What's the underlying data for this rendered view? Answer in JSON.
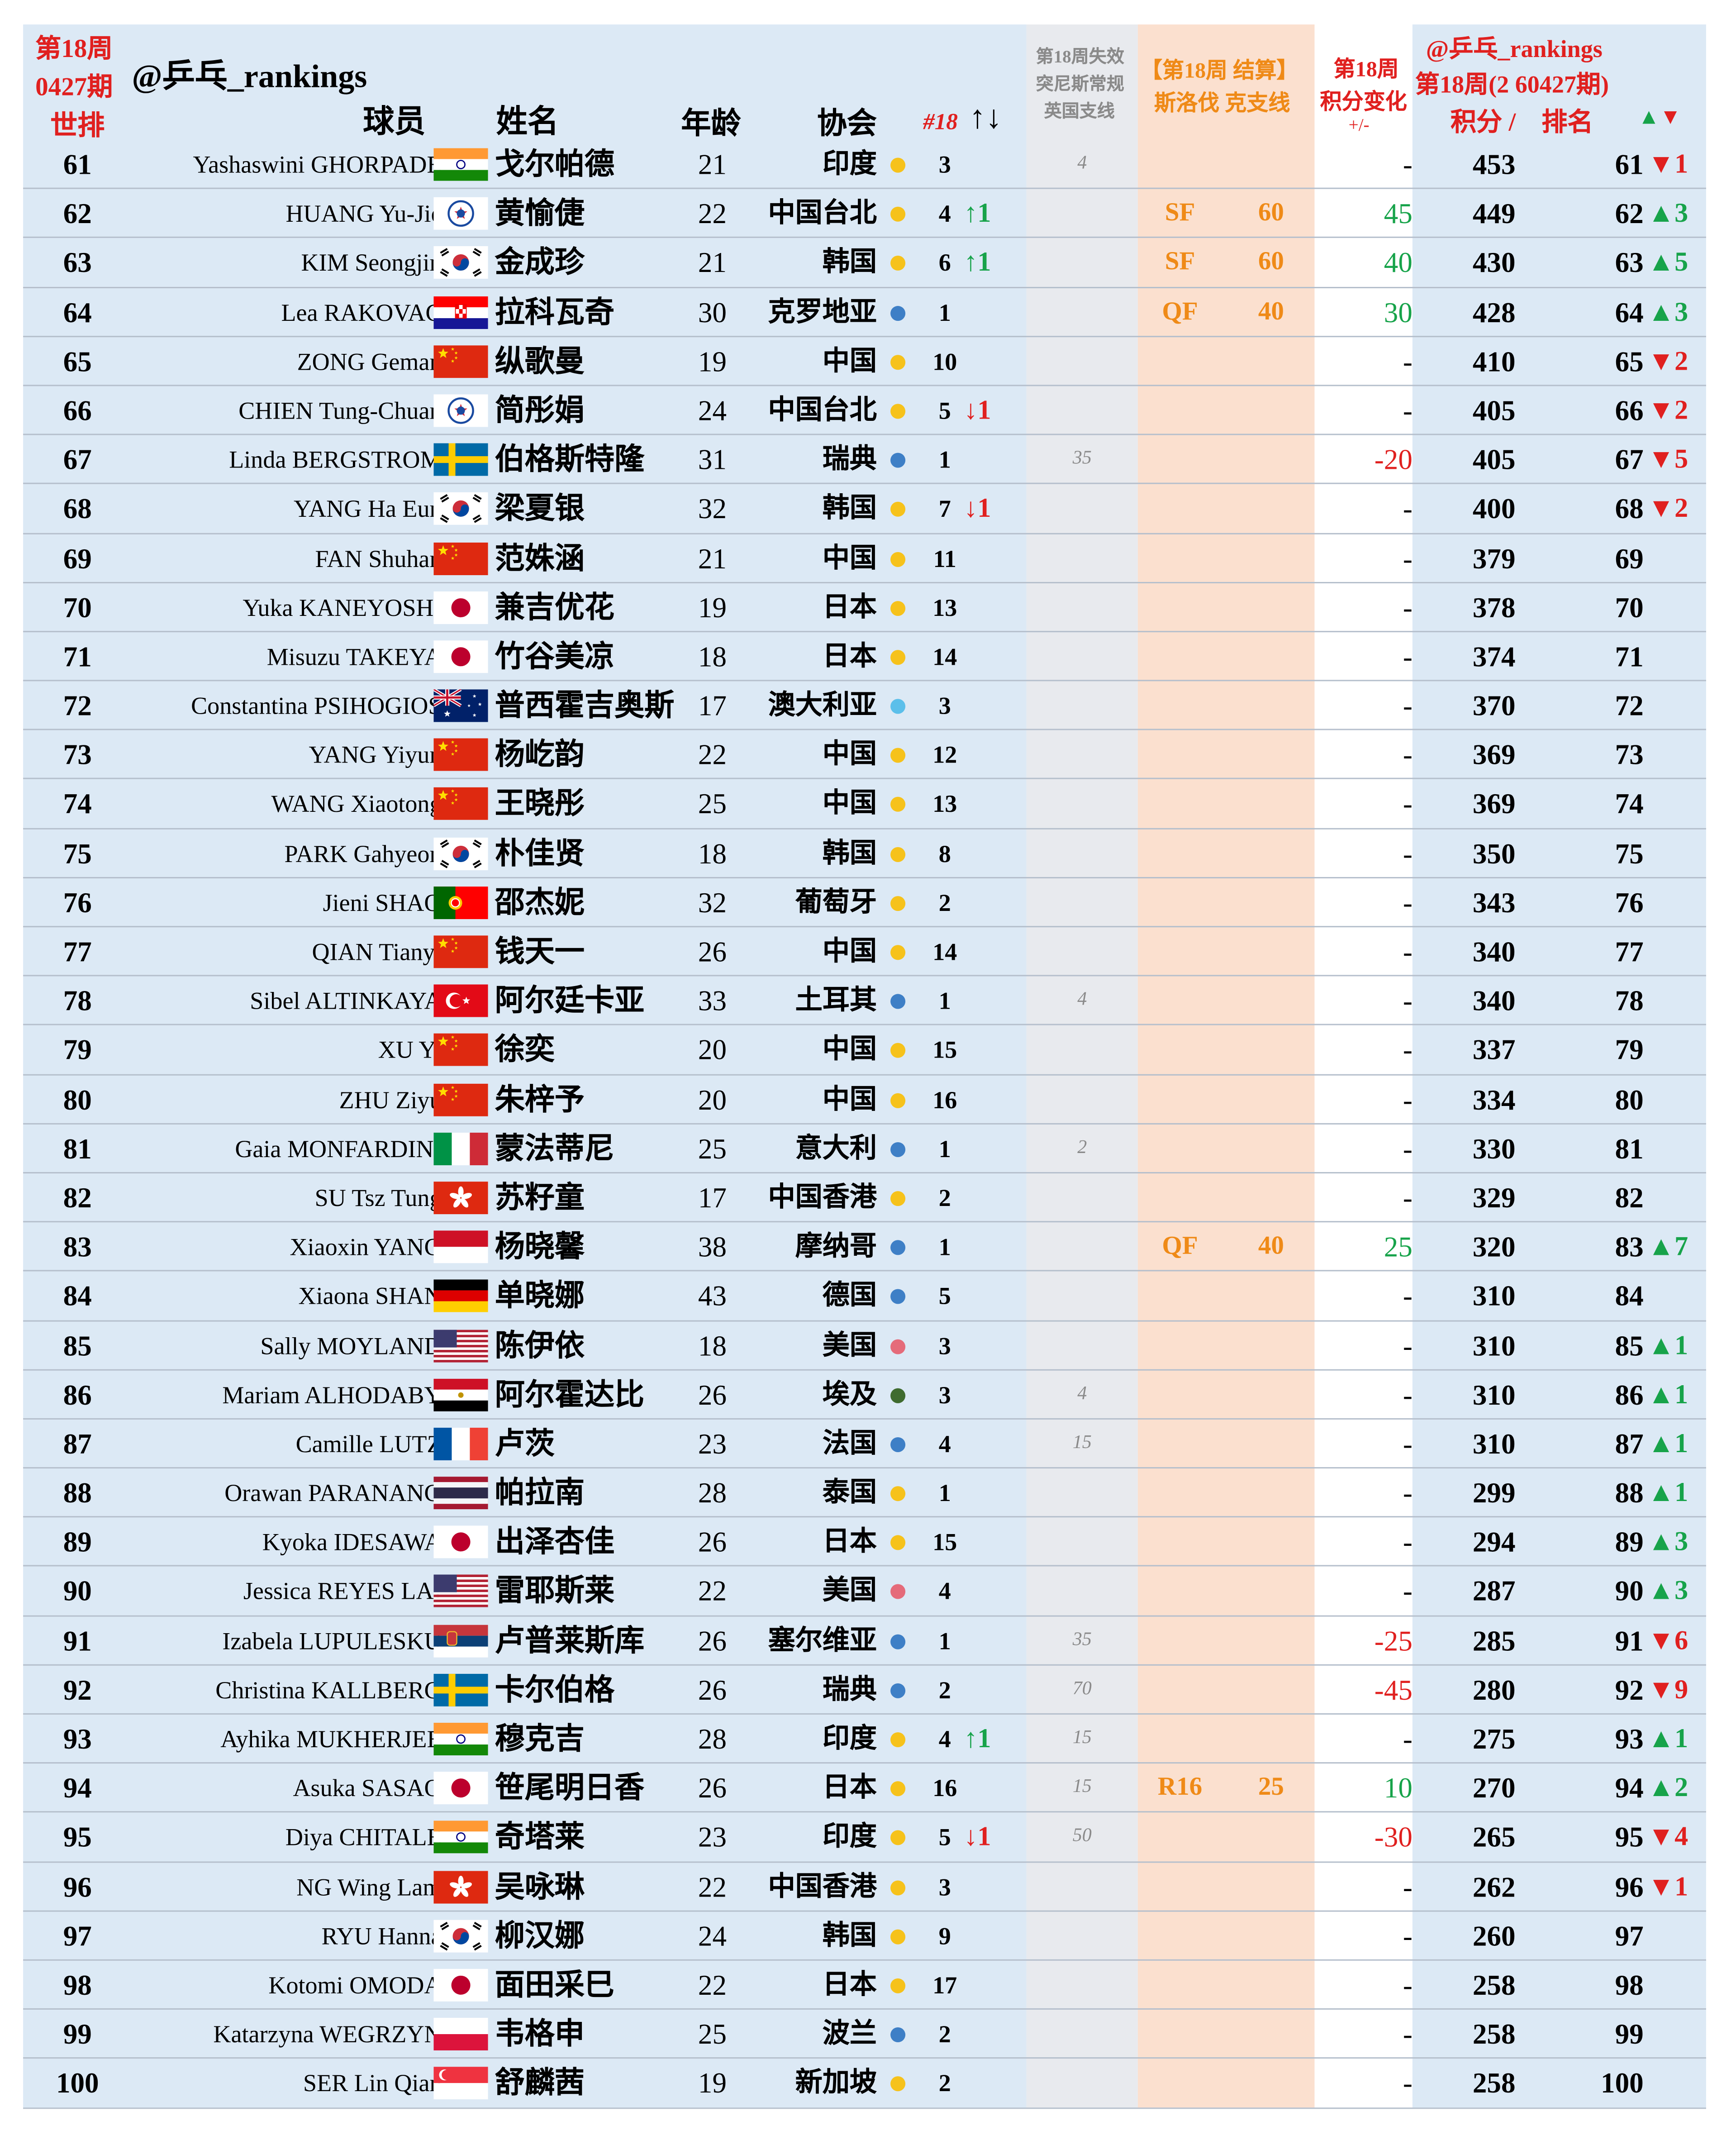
{
  "header": {
    "rank_title_1": "第18周",
    "rank_title_2": "0427期",
    "rank_title_3": "世排",
    "watermark": "@乒乓_rankings",
    "col_player": "球员",
    "col_name": "姓名",
    "col_age": "年龄",
    "col_assoc": "协会",
    "col_week": "#18",
    "col_week_arrows": "↑↓",
    "col_expire_1": "第18周失效",
    "col_expire_2": "突尼斯常规",
    "col_expire_3": "英国支线",
    "col_slov_1": "【第18周 结算】",
    "col_slov_2": "斯洛伐 克支线",
    "col_change_1": "第18周",
    "col_change_2": "积分变化",
    "col_change_3": "+/-",
    "col_new_1": "@乒乓_rankings",
    "col_new_2": "第18周(2 60427期)",
    "col_points": "积分 /",
    "col_newrank": "排名",
    "col_move": "▲▼"
  },
  "colors": {
    "dot_yellow": "#f6c21b",
    "dot_blue": "#3e7fc6",
    "dot_lightblue": "#5bbfea",
    "dot_pink": "#e56b7a",
    "dot_green": "#3f6b2f"
  },
  "rows": [
    {
      "rank": "61",
      "en": "Yashaswini GHORPADE",
      "flag": "IND",
      "cn": "戈尔帕德",
      "age": "21",
      "assoc": "印度",
      "dot": "yellow",
      "wk": "3",
      "mv": "",
      "mvdir": "",
      "exp": "4",
      "rd": "",
      "rp": "",
      "chg": "-",
      "chgdir": "",
      "pts": "453",
      "nr": "61",
      "md": "▼1",
      "mddir": "down"
    },
    {
      "rank": "62",
      "en": "HUANG Yu-Jie",
      "flag": "TPE",
      "cn": "黄愉倢",
      "age": "22",
      "assoc": "中国台北",
      "dot": "yellow",
      "wk": "4",
      "mv": "↑1",
      "mvdir": "up",
      "exp": "",
      "rd": "SF",
      "rp": "60",
      "chg": "45",
      "chgdir": "up",
      "pts": "449",
      "nr": "62",
      "md": "▲3",
      "mddir": "up"
    },
    {
      "rank": "63",
      "en": "KIM Seongjin",
      "flag": "KOR",
      "cn": "金成珍",
      "age": "21",
      "assoc": "韩国",
      "dot": "yellow",
      "wk": "6",
      "mv": "↑1",
      "mvdir": "up",
      "exp": "",
      "rd": "SF",
      "rp": "60",
      "chg": "40",
      "chgdir": "up",
      "pts": "430",
      "nr": "63",
      "md": "▲5",
      "mddir": "up"
    },
    {
      "rank": "64",
      "en": "Lea RAKOVAC",
      "flag": "CRO",
      "cn": "拉科瓦奇",
      "age": "30",
      "assoc": "克罗地亚",
      "dot": "blue",
      "wk": "1",
      "mv": "",
      "mvdir": "",
      "exp": "",
      "rd": "QF",
      "rp": "40",
      "chg": "30",
      "chgdir": "up",
      "pts": "428",
      "nr": "64",
      "md": "▲3",
      "mddir": "up"
    },
    {
      "rank": "65",
      "en": "ZONG Geman",
      "flag": "CHN",
      "cn": "纵歌曼",
      "age": "19",
      "assoc": "中国",
      "dot": "yellow",
      "wk": "10",
      "mv": "",
      "mvdir": "",
      "exp": "",
      "rd": "",
      "rp": "",
      "chg": "-",
      "chgdir": "",
      "pts": "410",
      "nr": "65",
      "md": "▼2",
      "mddir": "down"
    },
    {
      "rank": "66",
      "en": "CHIEN Tung-Chuan",
      "flag": "TPE",
      "cn": "简彤娟",
      "age": "24",
      "assoc": "中国台北",
      "dot": "yellow",
      "wk": "5",
      "mv": "↓1",
      "mvdir": "down",
      "exp": "",
      "rd": "",
      "rp": "",
      "chg": "-",
      "chgdir": "",
      "pts": "405",
      "nr": "66",
      "md": "▼2",
      "mddir": "down"
    },
    {
      "rank": "67",
      "en": "Linda BERGSTROM",
      "flag": "SWE",
      "cn": "伯格斯特隆",
      "age": "31",
      "assoc": "瑞典",
      "dot": "blue",
      "wk": "1",
      "mv": "",
      "mvdir": "",
      "exp": "35",
      "rd": "",
      "rp": "",
      "chg": "-20",
      "chgdir": "down",
      "pts": "405",
      "nr": "67",
      "md": "▼5",
      "mddir": "down"
    },
    {
      "rank": "68",
      "en": "YANG Ha Eun",
      "flag": "KOR",
      "cn": "梁夏银",
      "age": "32",
      "assoc": "韩国",
      "dot": "yellow",
      "wk": "7",
      "mv": "↓1",
      "mvdir": "down",
      "exp": "",
      "rd": "",
      "rp": "",
      "chg": "-",
      "chgdir": "",
      "pts": "400",
      "nr": "68",
      "md": "▼2",
      "mddir": "down"
    },
    {
      "rank": "69",
      "en": "FAN Shuhan",
      "flag": "CHN",
      "cn": "范姝涵",
      "age": "21",
      "assoc": "中国",
      "dot": "yellow",
      "wk": "11",
      "mv": "",
      "mvdir": "",
      "exp": "",
      "rd": "",
      "rp": "",
      "chg": "-",
      "chgdir": "",
      "pts": "379",
      "nr": "69",
      "md": "",
      "mddir": ""
    },
    {
      "rank": "70",
      "en": "Yuka KANEYOSHI",
      "flag": "JPN",
      "cn": "兼吉优花",
      "age": "19",
      "assoc": "日本",
      "dot": "yellow",
      "wk": "13",
      "mv": "",
      "mvdir": "",
      "exp": "",
      "rd": "",
      "rp": "",
      "chg": "-",
      "chgdir": "",
      "pts": "378",
      "nr": "70",
      "md": "",
      "mddir": ""
    },
    {
      "rank": "71",
      "en": "Misuzu TAKEYA",
      "flag": "JPN",
      "cn": "竹谷美凉",
      "age": "18",
      "assoc": "日本",
      "dot": "yellow",
      "wk": "14",
      "mv": "",
      "mvdir": "",
      "exp": "",
      "rd": "",
      "rp": "",
      "chg": "-",
      "chgdir": "",
      "pts": "374",
      "nr": "71",
      "md": "",
      "mddir": ""
    },
    {
      "rank": "72",
      "en": "Constantina PSIHOGIOS",
      "flag": "AUS",
      "cn": "普西霍吉奥斯",
      "age": "17",
      "assoc": "澳大利亚",
      "dot": "lightblue",
      "wk": "3",
      "mv": "",
      "mvdir": "",
      "exp": "",
      "rd": "",
      "rp": "",
      "chg": "-",
      "chgdir": "",
      "pts": "370",
      "nr": "72",
      "md": "",
      "mddir": ""
    },
    {
      "rank": "73",
      "en": "YANG Yiyun",
      "flag": "CHN",
      "cn": "杨屹韵",
      "age": "22",
      "assoc": "中国",
      "dot": "yellow",
      "wk": "12",
      "mv": "",
      "mvdir": "",
      "exp": "",
      "rd": "",
      "rp": "",
      "chg": "-",
      "chgdir": "",
      "pts": "369",
      "nr": "73",
      "md": "",
      "mddir": ""
    },
    {
      "rank": "74",
      "en": "WANG Xiaotong",
      "flag": "CHN",
      "cn": "王晓彤",
      "age": "25",
      "assoc": "中国",
      "dot": "yellow",
      "wk": "13",
      "mv": "",
      "mvdir": "",
      "exp": "",
      "rd": "",
      "rp": "",
      "chg": "-",
      "chgdir": "",
      "pts": "369",
      "nr": "74",
      "md": "",
      "mddir": ""
    },
    {
      "rank": "75",
      "en": "PARK Gahyeon",
      "flag": "KOR",
      "cn": "朴佳贤",
      "age": "18",
      "assoc": "韩国",
      "dot": "yellow",
      "wk": "8",
      "mv": "",
      "mvdir": "",
      "exp": "",
      "rd": "",
      "rp": "",
      "chg": "-",
      "chgdir": "",
      "pts": "350",
      "nr": "75",
      "md": "",
      "mddir": ""
    },
    {
      "rank": "76",
      "en": "Jieni SHAO",
      "flag": "POR",
      "cn": "邵杰妮",
      "age": "32",
      "assoc": "葡萄牙",
      "dot": "yellow",
      "wk": "2",
      "mv": "",
      "mvdir": "",
      "exp": "",
      "rd": "",
      "rp": "",
      "chg": "-",
      "chgdir": "",
      "pts": "343",
      "nr": "76",
      "md": "",
      "mddir": ""
    },
    {
      "rank": "77",
      "en": "QIAN Tianyi",
      "flag": "CHN",
      "cn": "钱天一",
      "age": "26",
      "assoc": "中国",
      "dot": "yellow",
      "wk": "14",
      "mv": "",
      "mvdir": "",
      "exp": "",
      "rd": "",
      "rp": "",
      "chg": "-",
      "chgdir": "",
      "pts": "340",
      "nr": "77",
      "md": "",
      "mddir": ""
    },
    {
      "rank": "78",
      "en": "Sibel ALTINKAYA",
      "flag": "TUR",
      "cn": "阿尔廷卡亚",
      "age": "33",
      "assoc": "土耳其",
      "dot": "blue",
      "wk": "1",
      "mv": "",
      "mvdir": "",
      "exp": "4",
      "rd": "",
      "rp": "",
      "chg": "-",
      "chgdir": "",
      "pts": "340",
      "nr": "78",
      "md": "",
      "mddir": ""
    },
    {
      "rank": "79",
      "en": "XU Yi",
      "flag": "CHN",
      "cn": "徐奕",
      "age": "20",
      "assoc": "中国",
      "dot": "yellow",
      "wk": "15",
      "mv": "",
      "mvdir": "",
      "exp": "",
      "rd": "",
      "rp": "",
      "chg": "-",
      "chgdir": "",
      "pts": "337",
      "nr": "79",
      "md": "",
      "mddir": ""
    },
    {
      "rank": "80",
      "en": "ZHU Ziyu",
      "flag": "CHN",
      "cn": "朱梓予",
      "age": "20",
      "assoc": "中国",
      "dot": "yellow",
      "wk": "16",
      "mv": "",
      "mvdir": "",
      "exp": "",
      "rd": "",
      "rp": "",
      "chg": "-",
      "chgdir": "",
      "pts": "334",
      "nr": "80",
      "md": "",
      "mddir": ""
    },
    {
      "rank": "81",
      "en": "Gaia MONFARDINI",
      "flag": "ITA",
      "cn": "蒙法蒂尼",
      "age": "25",
      "assoc": "意大利",
      "dot": "blue",
      "wk": "1",
      "mv": "",
      "mvdir": "",
      "exp": "2",
      "rd": "",
      "rp": "",
      "chg": "-",
      "chgdir": "",
      "pts": "330",
      "nr": "81",
      "md": "",
      "mddir": ""
    },
    {
      "rank": "82",
      "en": "SU Tsz Tung",
      "flag": "HKG",
      "cn": "苏籽童",
      "age": "17",
      "assoc": "中国香港",
      "dot": "yellow",
      "wk": "2",
      "mv": "",
      "mvdir": "",
      "exp": "",
      "rd": "",
      "rp": "",
      "chg": "-",
      "chgdir": "",
      "pts": "329",
      "nr": "82",
      "md": "",
      "mddir": ""
    },
    {
      "rank": "83",
      "en": "Xiaoxin YANG",
      "flag": "MON",
      "cn": "杨晓馨",
      "age": "38",
      "assoc": "摩纳哥",
      "dot": "blue",
      "wk": "1",
      "mv": "",
      "mvdir": "",
      "exp": "",
      "rd": "QF",
      "rp": "40",
      "chg": "25",
      "chgdir": "up",
      "pts": "320",
      "nr": "83",
      "md": "▲7",
      "mddir": "up"
    },
    {
      "rank": "84",
      "en": "Xiaona SHAN",
      "flag": "GER",
      "cn": "单晓娜",
      "age": "43",
      "assoc": "德国",
      "dot": "blue",
      "wk": "5",
      "mv": "",
      "mvdir": "",
      "exp": "",
      "rd": "",
      "rp": "",
      "chg": "-",
      "chgdir": "",
      "pts": "310",
      "nr": "84",
      "md": "",
      "mddir": ""
    },
    {
      "rank": "85",
      "en": "Sally MOYLAND",
      "flag": "USA",
      "cn": "陈伊依",
      "age": "18",
      "assoc": "美国",
      "dot": "pink",
      "wk": "3",
      "mv": "",
      "mvdir": "",
      "exp": "",
      "rd": "",
      "rp": "",
      "chg": "-",
      "chgdir": "",
      "pts": "310",
      "nr": "85",
      "md": "▲1",
      "mddir": "up"
    },
    {
      "rank": "86",
      "en": "Mariam ALHODABY",
      "flag": "EGY",
      "cn": "阿尔霍达比",
      "age": "26",
      "assoc": "埃及",
      "dot": "green",
      "wk": "3",
      "mv": "",
      "mvdir": "",
      "exp": "4",
      "rd": "",
      "rp": "",
      "chg": "-",
      "chgdir": "",
      "pts": "310",
      "nr": "86",
      "md": "▲1",
      "mddir": "up"
    },
    {
      "rank": "87",
      "en": "Camille LUTZ",
      "flag": "FRA",
      "cn": "卢茨",
      "age": "23",
      "assoc": "法国",
      "dot": "blue",
      "wk": "4",
      "mv": "",
      "mvdir": "",
      "exp": "15",
      "rd": "",
      "rp": "",
      "chg": "-",
      "chgdir": "",
      "pts": "310",
      "nr": "87",
      "md": "▲1",
      "mddir": "up"
    },
    {
      "rank": "88",
      "en": "Orawan PARANANG",
      "flag": "THA",
      "cn": "帕拉南",
      "age": "28",
      "assoc": "泰国",
      "dot": "yellow",
      "wk": "1",
      "mv": "",
      "mvdir": "",
      "exp": "",
      "rd": "",
      "rp": "",
      "chg": "-",
      "chgdir": "",
      "pts": "299",
      "nr": "88",
      "md": "▲1",
      "mddir": "up"
    },
    {
      "rank": "89",
      "en": "Kyoka IDESAWA",
      "flag": "JPN",
      "cn": "出泽杏佳",
      "age": "26",
      "assoc": "日本",
      "dot": "yellow",
      "wk": "15",
      "mv": "",
      "mvdir": "",
      "exp": "",
      "rd": "",
      "rp": "",
      "chg": "-",
      "chgdir": "",
      "pts": "294",
      "nr": "89",
      "md": "▲3",
      "mddir": "up"
    },
    {
      "rank": "90",
      "en": "Jessica REYES LAI",
      "flag": "USA",
      "cn": "雷耶斯莱",
      "age": "22",
      "assoc": "美国",
      "dot": "pink",
      "wk": "4",
      "mv": "",
      "mvdir": "",
      "exp": "",
      "rd": "",
      "rp": "",
      "chg": "-",
      "chgdir": "",
      "pts": "287",
      "nr": "90",
      "md": "▲3",
      "mddir": "up"
    },
    {
      "rank": "91",
      "en": "Izabela LUPULESKU",
      "flag": "SRB",
      "cn": "卢普莱斯库",
      "age": "26",
      "assoc": "塞尔维亚",
      "dot": "blue",
      "wk": "1",
      "mv": "",
      "mvdir": "",
      "exp": "35",
      "rd": "",
      "rp": "",
      "chg": "-25",
      "chgdir": "down",
      "pts": "285",
      "nr": "91",
      "md": "▼6",
      "mddir": "down"
    },
    {
      "rank": "92",
      "en": "Christina KALLBERG",
      "flag": "SWE",
      "cn": "卡尔伯格",
      "age": "26",
      "assoc": "瑞典",
      "dot": "blue",
      "wk": "2",
      "mv": "",
      "mvdir": "",
      "exp": "70",
      "rd": "",
      "rp": "",
      "chg": "-45",
      "chgdir": "down",
      "pts": "280",
      "nr": "92",
      "md": "▼9",
      "mddir": "down"
    },
    {
      "rank": "93",
      "en": "Ayhika MUKHERJEE",
      "flag": "IND",
      "cn": "穆克吉",
      "age": "28",
      "assoc": "印度",
      "dot": "yellow",
      "wk": "4",
      "mv": "↑1",
      "mvdir": "up",
      "exp": "15",
      "rd": "",
      "rp": "",
      "chg": "-",
      "chgdir": "",
      "pts": "275",
      "nr": "93",
      "md": "▲1",
      "mddir": "up"
    },
    {
      "rank": "94",
      "en": "Asuka SASAO",
      "flag": "JPN",
      "cn": "笹尾明日香",
      "age": "26",
      "assoc": "日本",
      "dot": "yellow",
      "wk": "16",
      "mv": "",
      "mvdir": "",
      "exp": "15",
      "rd": "R16",
      "rp": "25",
      "chg": "10",
      "chgdir": "up",
      "pts": "270",
      "nr": "94",
      "md": "▲2",
      "mddir": "up"
    },
    {
      "rank": "95",
      "en": "Diya CHITALE",
      "flag": "IND",
      "cn": "奇塔莱",
      "age": "23",
      "assoc": "印度",
      "dot": "yellow",
      "wk": "5",
      "mv": "↓1",
      "mvdir": "down",
      "exp": "50",
      "rd": "",
      "rp": "",
      "chg": "-30",
      "chgdir": "down",
      "pts": "265",
      "nr": "95",
      "md": "▼4",
      "mddir": "down"
    },
    {
      "rank": "96",
      "en": "NG Wing Lam",
      "flag": "HKG",
      "cn": "吴咏琳",
      "age": "22",
      "assoc": "中国香港",
      "dot": "yellow",
      "wk": "3",
      "mv": "",
      "mvdir": "",
      "exp": "",
      "rd": "",
      "rp": "",
      "chg": "-",
      "chgdir": "",
      "pts": "262",
      "nr": "96",
      "md": "▼1",
      "mddir": "down"
    },
    {
      "rank": "97",
      "en": "RYU Hanna",
      "flag": "KOR",
      "cn": "柳汉娜",
      "age": "24",
      "assoc": "韩国",
      "dot": "yellow",
      "wk": "9",
      "mv": "",
      "mvdir": "",
      "exp": "",
      "rd": "",
      "rp": "",
      "chg": "-",
      "chgdir": "",
      "pts": "260",
      "nr": "97",
      "md": "",
      "mddir": ""
    },
    {
      "rank": "98",
      "en": "Kotomi OMODA",
      "flag": "JPN",
      "cn": "面田采巳",
      "age": "22",
      "assoc": "日本",
      "dot": "yellow",
      "wk": "17",
      "mv": "",
      "mvdir": "",
      "exp": "",
      "rd": "",
      "rp": "",
      "chg": "-",
      "chgdir": "",
      "pts": "258",
      "nr": "98",
      "md": "",
      "mddir": ""
    },
    {
      "rank": "99",
      "en": "Katarzyna WEGRZYN",
      "flag": "POL",
      "cn": "韦格申",
      "age": "25",
      "assoc": "波兰",
      "dot": "blue",
      "wk": "2",
      "mv": "",
      "mvdir": "",
      "exp": "",
      "rd": "",
      "rp": "",
      "chg": "-",
      "chgdir": "",
      "pts": "258",
      "nr": "99",
      "md": "",
      "mddir": ""
    },
    {
      "rank": "100",
      "en": "SER Lin Qian",
      "flag": "SGP",
      "cn": "舒麟茜",
      "age": "19",
      "assoc": "新加坡",
      "dot": "yellow",
      "wk": "2",
      "mv": "",
      "mvdir": "",
      "exp": "",
      "rd": "",
      "rp": "",
      "chg": "-",
      "chgdir": "",
      "pts": "258",
      "nr": "100",
      "md": "",
      "mddir": ""
    }
  ]
}
